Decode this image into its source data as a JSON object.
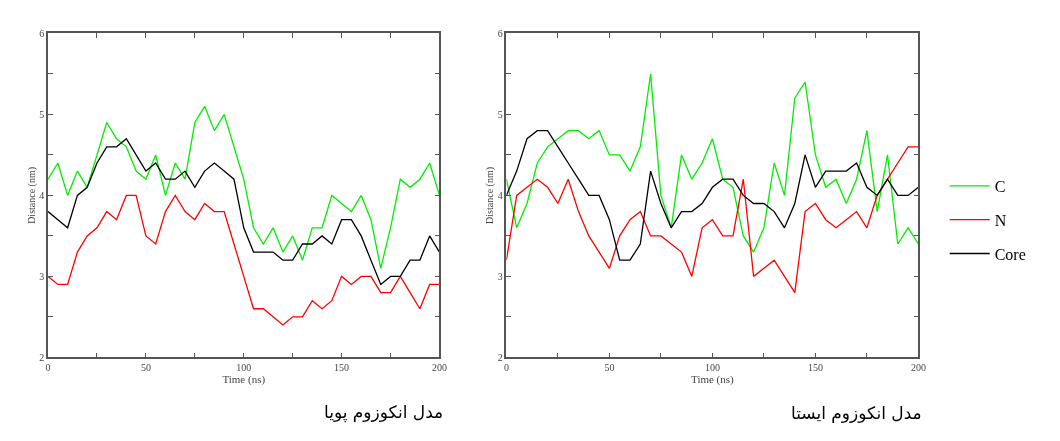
{
  "chart_data": [
    {
      "type": "line",
      "xlabel": "Time (ns)",
      "ylabel": "Distance (nm)",
      "annotations": [
        "مدل انکوزوم پویا"
      ],
      "legend": "right",
      "x": [
        0,
        5,
        10,
        15,
        20,
        25,
        30,
        35,
        40,
        45,
        50,
        55,
        60,
        65,
        70,
        75,
        80,
        85,
        90,
        95,
        100,
        105,
        110,
        115,
        120,
        125,
        130,
        135,
        140,
        145,
        150,
        155,
        160,
        165,
        170,
        175,
        180,
        185,
        190,
        195,
        200
      ],
      "xlim": [
        0,
        200
      ],
      "ylim": [
        2,
        6
      ],
      "xticks": [
        0,
        {
          "value": 25,
          "label": null
        },
        50,
        {
          "value": 75,
          "label": null
        },
        100,
        {
          "value": 125,
          "label": null
        },
        150,
        {
          "value": 175,
          "label": null
        },
        200
      ],
      "yticks": [
        2,
        {
          "value": 2.5,
          "label": null
        },
        3,
        {
          "value": 3.5,
          "label": null
        },
        4,
        {
          "value": 4.5,
          "label": null
        },
        5,
        {
          "value": 5.5,
          "label": null
        },
        6
      ],
      "series": [
        {
          "name": "C",
          "color": "#00ee00",
          "values": [
            4.2,
            4.4,
            4.0,
            4.3,
            4.1,
            4.5,
            4.9,
            4.7,
            4.6,
            4.3,
            4.2,
            4.5,
            4.0,
            4.4,
            4.2,
            4.9,
            5.1,
            4.8,
            5.0,
            4.6,
            4.2,
            3.6,
            3.4,
            3.6,
            3.3,
            3.5,
            3.2,
            3.6,
            3.6,
            4.0,
            3.9,
            3.8,
            4.0,
            3.7,
            3.1,
            3.6,
            4.2,
            4.1,
            4.2,
            4.4,
            4.0
          ]
        },
        {
          "name": "N",
          "color": "#ff0000",
          "values": [
            3.0,
            2.9,
            2.9,
            3.3,
            3.5,
            3.6,
            3.8,
            3.7,
            4.0,
            4.0,
            3.5,
            3.4,
            3.8,
            4.0,
            3.8,
            3.7,
            3.9,
            3.8,
            3.8,
            3.4,
            3.0,
            2.6,
            2.6,
            2.5,
            2.4,
            2.5,
            2.5,
            2.7,
            2.6,
            2.7,
            3.0,
            2.9,
            3.0,
            3.0,
            2.8,
            2.8,
            3.0,
            2.8,
            2.6,
            2.9,
            2.9
          ]
        },
        {
          "name": "Core",
          "color": "#000000",
          "values": [
            3.8,
            3.7,
            3.6,
            4.0,
            4.1,
            4.4,
            4.6,
            4.6,
            4.7,
            4.5,
            4.3,
            4.4,
            4.2,
            4.2,
            4.3,
            4.1,
            4.3,
            4.4,
            4.3,
            4.2,
            3.6,
            3.3,
            3.3,
            3.3,
            3.2,
            3.2,
            3.4,
            3.4,
            3.5,
            3.4,
            3.7,
            3.7,
            3.5,
            3.2,
            2.9,
            3.0,
            3.0,
            3.2,
            3.2,
            3.5,
            3.3
          ]
        }
      ]
    },
    {
      "type": "line",
      "xlabel": "Time (ns)",
      "ylabel": "Distance (nm)",
      "annotations": [
        "مدل انکوزوم ایستا"
      ],
      "x": [
        0,
        5,
        10,
        15,
        20,
        25,
        30,
        35,
        40,
        45,
        50,
        55,
        60,
        65,
        70,
        75,
        80,
        85,
        90,
        95,
        100,
        105,
        110,
        115,
        120,
        125,
        130,
        135,
        140,
        145,
        150,
        155,
        160,
        165,
        170,
        175,
        180,
        185,
        190,
        195,
        200
      ],
      "xlim": [
        0,
        200
      ],
      "ylim": [
        2,
        6
      ],
      "xticks": [
        0,
        {
          "value": 25,
          "label": null
        },
        50,
        {
          "value": 75,
          "label": null
        },
        100,
        {
          "value": 125,
          "label": null
        },
        150,
        {
          "value": 175,
          "label": null
        },
        200
      ],
      "yticks": [
        2,
        {
          "value": 2.5,
          "label": null
        },
        3,
        {
          "value": 3.5,
          "label": null
        },
        4,
        {
          "value": 4.5,
          "label": null
        },
        5,
        {
          "value": 5.5,
          "label": null
        },
        6
      ],
      "series": [
        {
          "color": "#00ee00",
          "values": [
            4.2,
            3.6,
            3.9,
            4.4,
            4.6,
            4.7,
            4.8,
            4.8,
            4.7,
            4.8,
            4.5,
            4.5,
            4.3,
            4.6,
            5.5,
            4.0,
            3.6,
            4.5,
            4.2,
            4.4,
            4.7,
            4.2,
            4.1,
            3.5,
            3.3,
            3.6,
            4.4,
            4.0,
            5.2,
            5.4,
            4.5,
            4.1,
            4.2,
            3.9,
            4.2,
            4.8,
            3.8,
            4.5,
            3.4,
            3.6,
            3.4
          ]
        },
        {
          "color": "#ff0000",
          "values": [
            3.2,
            4.0,
            4.1,
            4.2,
            4.1,
            3.9,
            4.2,
            3.8,
            3.5,
            3.3,
            3.1,
            3.5,
            3.7,
            3.8,
            3.5,
            3.5,
            3.4,
            3.3,
            3.0,
            3.6,
            3.7,
            3.5,
            3.5,
            4.2,
            3.0,
            3.1,
            3.2,
            3.0,
            2.8,
            3.8,
            3.9,
            3.7,
            3.6,
            3.7,
            3.8,
            3.6,
            4.0,
            4.2,
            4.4,
            4.6,
            4.6
          ]
        },
        {
          "color": "#000000",
          "values": [
            4.0,
            4.3,
            4.7,
            4.8,
            4.8,
            4.6,
            4.4,
            4.2,
            4.0,
            4.0,
            3.7,
            3.2,
            3.2,
            3.4,
            4.3,
            3.9,
            3.6,
            3.8,
            3.8,
            3.9,
            4.1,
            4.2,
            4.2,
            4.0,
            3.9,
            3.9,
            3.8,
            3.6,
            3.9,
            4.5,
            4.1,
            4.3,
            4.3,
            4.3,
            4.4,
            4.1,
            4.0,
            4.2,
            4.0,
            4.0,
            4.1
          ]
        }
      ]
    }
  ]
}
